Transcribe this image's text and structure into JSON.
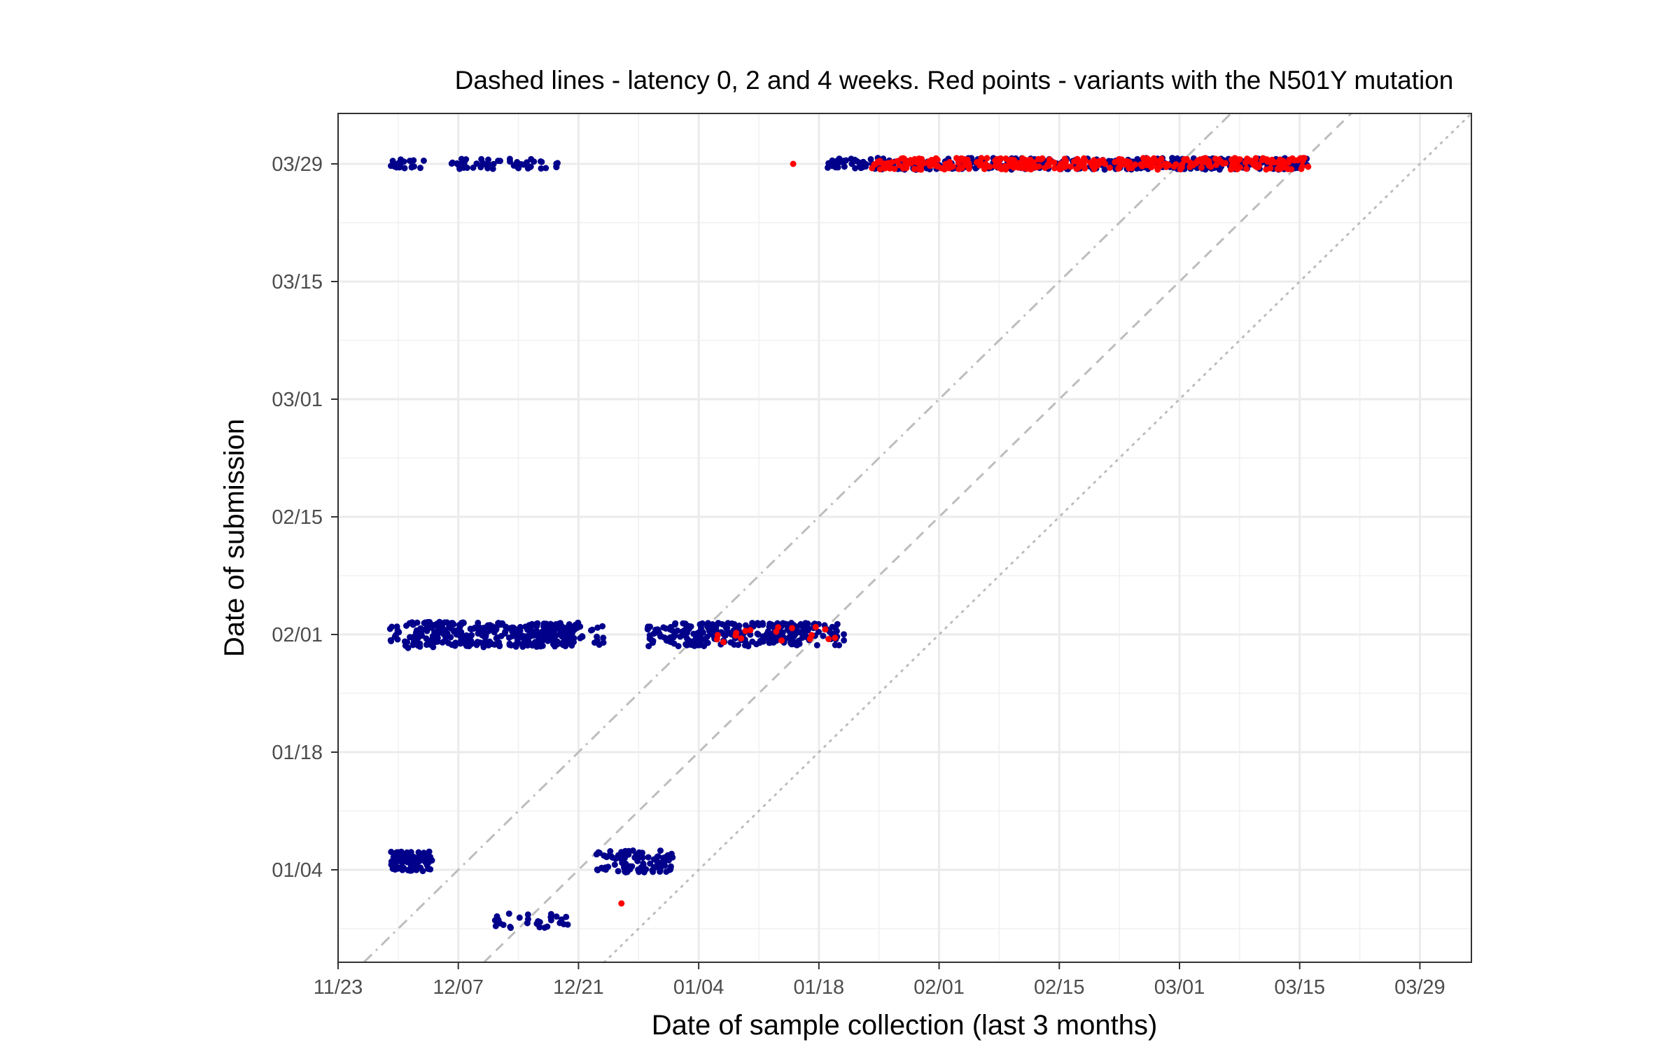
{
  "chart_data": {
    "type": "scatter",
    "title": "Dashed lines - latency 0, 2 and 4 weeks. Red points - variants with the N501Y mutation",
    "xlabel": "Date of sample collection (last 3 months)",
    "ylabel": "Date of submission",
    "x_tick_labels": [
      "11/23",
      "12/07",
      "12/21",
      "01/04",
      "01/18",
      "02/01",
      "02/15",
      "03/01",
      "03/15",
      "03/29"
    ],
    "y_tick_labels": [
      "01/04",
      "01/18",
      "02/01",
      "02/15",
      "03/01",
      "03/15",
      "03/29"
    ],
    "xlim": [
      "11/23",
      "04/04"
    ],
    "ylim": [
      "12/24",
      "04/04"
    ],
    "grid": true,
    "reference_lines": [
      {
        "latency_weeks": 0,
        "style": "dotted",
        "color": "#bdbdbd"
      },
      {
        "latency_weeks": 2,
        "style": "dashed",
        "color": "#bdbdbd"
      },
      {
        "latency_weeks": 4,
        "style": "dot-dash",
        "color": "#bdbdbd"
      }
    ],
    "colors": {
      "other": "#00008b",
      "N501Y": "#ff0000"
    },
    "series": [
      {
        "color": "#00008b",
        "clusters": [
          {
            "submission": "12/29",
            "x_from": "12/11",
            "x_to": "12/19",
            "count": 30,
            "spread_days": 0.9
          },
          {
            "submission": "01/05",
            "x_from": "11/29",
            "x_to": "12/03",
            "count": 90,
            "spread_days": 1.2
          },
          {
            "submission": "01/05",
            "x_from": "12/23",
            "x_to": "12/31",
            "count": 100,
            "spread_days": 1.3
          },
          {
            "submission": "02/01",
            "x_from": "11/29",
            "x_to": "12/01",
            "count": 25,
            "spread_days": 1.6
          },
          {
            "submission": "02/01",
            "x_from": "12/02",
            "x_to": "12/20",
            "count": 320,
            "spread_days": 1.5
          },
          {
            "submission": "02/01",
            "x_from": "12/18",
            "x_to": "12/23",
            "count": 30,
            "spread_days": 1.3
          },
          {
            "submission": "02/01",
            "x_from": "12/29",
            "x_to": "01/16",
            "count": 230,
            "spread_days": 1.4
          },
          {
            "submission": "02/01",
            "x_from": "01/12",
            "x_to": "01/20",
            "count": 60,
            "spread_days": 1.3
          },
          {
            "submission": "03/29",
            "x_from": "11/29",
            "x_to": "12/02",
            "count": 22,
            "spread_days": 0.6
          },
          {
            "submission": "03/29",
            "x_from": "12/06",
            "x_to": "12/11",
            "count": 28,
            "spread_days": 0.6
          },
          {
            "submission": "03/29",
            "x_from": "12/13",
            "x_to": "12/18",
            "count": 24,
            "spread_days": 0.6
          },
          {
            "submission": "03/29",
            "x_from": "01/19",
            "x_to": "03/15",
            "count": 380,
            "spread_days": 0.7
          }
        ]
      },
      {
        "name": "N501Y",
        "color": "#ff0000",
        "clusters": [
          {
            "submission": "12/31",
            "x_from": "12/26",
            "x_to": "12/26",
            "count": 1,
            "spread_days": 0
          },
          {
            "submission": "02/01",
            "x_from": "01/06",
            "x_to": "01/20",
            "count": 18,
            "spread_days": 1.0
          },
          {
            "submission": "03/29",
            "x_from": "01/15",
            "x_to": "01/15",
            "count": 1,
            "spread_days": 0
          },
          {
            "submission": "03/29",
            "x_from": "01/24",
            "x_to": "03/15",
            "count": 330,
            "spread_days": 0.7
          }
        ]
      }
    ]
  }
}
